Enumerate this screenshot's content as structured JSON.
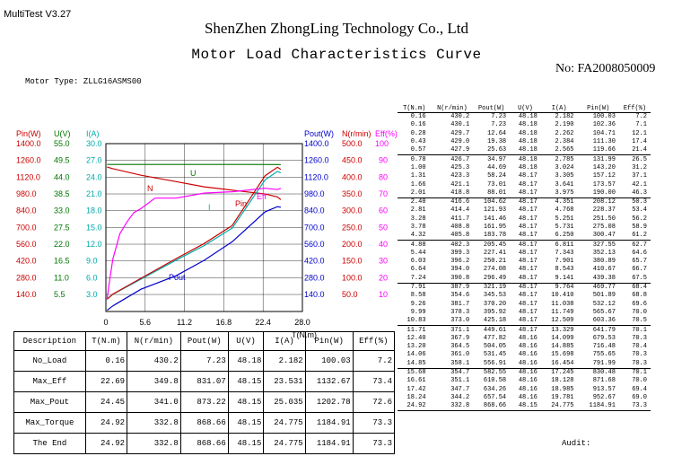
{
  "app_title": "MultiTest V3.27",
  "company": "ShenZhen ZhongLing Technology Co., Ltd",
  "subtitle": "Motor Load Characteristics Curve",
  "serial_no": "No: FA2008050009",
  "motor_type": "Motor Type: ZLLG16ASMS00",
  "audit_label": "Audit:",
  "colors": {
    "pin": "#cc0000",
    "u": "#007700",
    "i": "#00aaaa",
    "pout": "#0000cc",
    "n": "#cc0000",
    "eff": "#ff00ff",
    "grid": "#000000"
  },
  "chart_data": {
    "type": "line",
    "x_axis": {
      "label": "T(N.m)",
      "range": [
        0,
        28.0
      ],
      "ticks": [
        "0",
        "5.6",
        "11.2",
        "16.8",
        "22.4",
        "28.0"
      ]
    },
    "left_axes": [
      {
        "label": "Pin(W)",
        "color": "#cc0000",
        "ticks": [
          "1400.0",
          "1260.0",
          "1120.0",
          "980.0",
          "840.0",
          "700.0",
          "560.0",
          "420.0",
          "280.0",
          "140.0"
        ],
        "range": [
          0,
          1400
        ]
      },
      {
        "label": "U(V)",
        "color": "#007700",
        "ticks": [
          "55.0",
          "49.5",
          "44.0",
          "38.5",
          "33.0",
          "27.5",
          "22.0",
          "16.5",
          "11.0",
          "5.5"
        ],
        "range": [
          0,
          55
        ]
      },
      {
        "label": "I(A)",
        "color": "#00aaaa",
        "ticks": [
          "30.0",
          "27.0",
          "24.0",
          "21.0",
          "18.0",
          "15.0",
          "12.0",
          "9.0",
          "6.0",
          "3.0"
        ],
        "range": [
          0,
          30
        ]
      }
    ],
    "right_axes": [
      {
        "label": "Pout(W)",
        "color": "#0000cc",
        "ticks": [
          "1400.0",
          "1260.0",
          "1120.0",
          "980.0",
          "840.0",
          "700.0",
          "560.0",
          "420.0",
          "280.0",
          "140.0"
        ],
        "range": [
          0,
          1400
        ]
      },
      {
        "label": "N(r/min)",
        "color": "#cc0000",
        "ticks": [
          "500.0",
          "450.0",
          "400.0",
          "350.0",
          "300.0",
          "250.0",
          "200.0",
          "150.0",
          "100.0",
          "50.0"
        ],
        "range": [
          0,
          500
        ]
      },
      {
        "label": "Eff(%)",
        "color": "#ff00ff",
        "ticks": [
          "100",
          "90",
          "80",
          "70",
          "60",
          "50",
          "40",
          "30",
          "20",
          "10"
        ],
        "range": [
          0,
          100
        ]
      }
    ],
    "curve_labels": [
      "U",
      "N",
      "Eff",
      "Pin",
      "I",
      "Pout"
    ],
    "series": [
      {
        "name": "N",
        "axis": "N",
        "points": [
          [
            0.16,
            430.2
          ],
          [
            1.0,
            425.3
          ],
          [
            5.0,
            405.8
          ],
          [
            10.0,
            386.8
          ],
          [
            14.0,
            371.1
          ],
          [
            18.0,
            361.2
          ],
          [
            22.69,
            349.8
          ],
          [
            24.45,
            341.0
          ],
          [
            24.92,
            332.8
          ]
        ]
      },
      {
        "name": "U",
        "axis": "U",
        "points": [
          [
            0.16,
            48.18
          ],
          [
            5.0,
            48.18
          ],
          [
            10.0,
            48.17
          ],
          [
            15.0,
            48.16
          ],
          [
            20.0,
            48.16
          ],
          [
            24.92,
            48.15
          ]
        ]
      },
      {
        "name": "I",
        "axis": "I",
        "points": [
          [
            0.16,
            2.182
          ],
          [
            1.0,
            3.024
          ],
          [
            5.0,
            5.731
          ],
          [
            10.0,
            9.141
          ],
          [
            14.0,
            11.749
          ],
          [
            18.0,
            14.885
          ],
          [
            22.69,
            23.531
          ],
          [
            24.45,
            25.035
          ],
          [
            24.92,
            24.775
          ]
        ]
      },
      {
        "name": "Pin",
        "axis": "Pin",
        "points": [
          [
            0.16,
            100.03
          ],
          [
            1.0,
            143.2
          ],
          [
            5.0,
            275.08
          ],
          [
            10.0,
            439.38
          ],
          [
            14.0,
            565.67
          ],
          [
            18.0,
            716.48
          ],
          [
            22.69,
            1132.67
          ],
          [
            24.45,
            1202.78
          ],
          [
            24.92,
            1184.91
          ]
        ]
      },
      {
        "name": "Pout",
        "axis": "Pout",
        "points": [
          [
            0.16,
            7.23
          ],
          [
            1.0,
            44.69
          ],
          [
            5.0,
            183.78
          ],
          [
            10.0,
            296.49
          ],
          [
            14.0,
            425.18
          ],
          [
            18.0,
            580.53
          ],
          [
            22.69,
            831.07
          ],
          [
            24.45,
            873.22
          ],
          [
            24.92,
            868.66
          ]
        ]
      },
      {
        "name": "Eff",
        "axis": "Eff",
        "points": [
          [
            0.16,
            7.2
          ],
          [
            0.5,
            17.4
          ],
          [
            1.0,
            31.2
          ],
          [
            2.0,
            46.3
          ],
          [
            3.0,
            53.3
          ],
          [
            4.0,
            58.9
          ],
          [
            5.0,
            61.2
          ],
          [
            7.0,
            67.5
          ],
          [
            10.0,
            67.5
          ],
          [
            14.0,
            70.5
          ],
          [
            18.0,
            71.3
          ],
          [
            22.69,
            73.4
          ],
          [
            24.45,
            72.6
          ],
          [
            24.92,
            73.3
          ]
        ]
      }
    ]
  },
  "summary": {
    "headers": [
      "Description",
      "T(N.m)",
      "N(r/min)",
      "Pout(W)",
      "U(V)",
      "I(A)",
      "Pin(W)",
      "Eff(%)"
    ],
    "rows": [
      [
        "No_Load",
        "0.16",
        "430.2",
        "7.23",
        "48.18",
        "2.182",
        "100.03",
        "7.2"
      ],
      [
        "Max_Eff",
        "22.69",
        "349.8",
        "831.07",
        "48.15",
        "23.531",
        "1132.67",
        "73.4"
      ],
      [
        "Max_Pout",
        "24.45",
        "341.0",
        "873.22",
        "48.15",
        "25.035",
        "1202.78",
        "72.6"
      ],
      [
        "Max_Torque",
        "24.92",
        "332.8",
        "868.66",
        "48.15",
        "24.775",
        "1184.91",
        "73.3"
      ],
      [
        "The End",
        "24.92",
        "332.8",
        "868.66",
        "48.15",
        "24.775",
        "1184.91",
        "73.3"
      ]
    ]
  },
  "points": {
    "headers": [
      "T(N.m)",
      "N(r/min)",
      "Pout(W)",
      "U(V)",
      "I(A)",
      "Pin(W)",
      "Eff(%)"
    ],
    "groups": [
      [
        [
          "0.16",
          "430.2",
          "7.23",
          "48.18",
          "2.182",
          "100.03",
          "7.2"
        ],
        [
          "0.16",
          "430.1",
          "7.23",
          "48.18",
          "2.190",
          "102.36",
          "7.1"
        ],
        [
          "0.28",
          "429.7",
          "12.64",
          "48.18",
          "2.262",
          "104.71",
          "12.1"
        ],
        [
          "0.43",
          "429.0",
          "19.38",
          "48.18",
          "2.384",
          "111.30",
          "17.4"
        ],
        [
          "0.57",
          "427.9",
          "25.63",
          "48.18",
          "2.565",
          "119.66",
          "21.4"
        ]
      ],
      [
        [
          "0.78",
          "426.7",
          "34.97",
          "48.18",
          "2.785",
          "131.99",
          "26.5"
        ],
        [
          "1.00",
          "425.3",
          "44.69",
          "48.18",
          "3.024",
          "143.20",
          "31.2"
        ],
        [
          "1.31",
          "423.3",
          "58.24",
          "48.17",
          "3.305",
          "157.12",
          "37.1"
        ],
        [
          "1.66",
          "421.1",
          "73.01",
          "48.17",
          "3.641",
          "173.57",
          "42.1"
        ],
        [
          "2.01",
          "418.8",
          "88.01",
          "48.17",
          "3.975",
          "190.00",
          "46.3"
        ]
      ],
      [
        [
          "2.40",
          "416.6",
          "104.62",
          "48.17",
          "4.351",
          "208.12",
          "50.3"
        ],
        [
          "2.81",
          "414.4",
          "121.93",
          "48.17",
          "4.768",
          "228.37",
          "53.4"
        ],
        [
          "3.28",
          "411.7",
          "141.46",
          "48.17",
          "5.251",
          "251.50",
          "56.2"
        ],
        [
          "3.78",
          "408.8",
          "161.95",
          "48.17",
          "5.731",
          "275.08",
          "58.9"
        ],
        [
          "4.32",
          "405.8",
          "183.78",
          "48.17",
          "6.250",
          "300.47",
          "61.2"
        ]
      ],
      [
        [
          "4.88",
          "402.3",
          "205.45",
          "48.17",
          "6.811",
          "327.55",
          "62.7"
        ],
        [
          "5.44",
          "399.3",
          "227.41",
          "48.17",
          "7.343",
          "352.13",
          "64.6"
        ],
        [
          "6.03",
          "396.2",
          "250.21",
          "48.17",
          "7.901",
          "380.89",
          "65.7"
        ],
        [
          "6.64",
          "394.0",
          "274.08",
          "48.17",
          "8.543",
          "410.67",
          "66.7"
        ],
        [
          "7.24",
          "390.8",
          "296.49",
          "48.17",
          "9.141",
          "439.38",
          "67.5"
        ]
      ],
      [
        [
          "7.91",
          "387.9",
          "321.19",
          "48.17",
          "9.764",
          "469.77",
          "68.4"
        ],
        [
          "8.58",
          "354.6",
          "345.53",
          "48.17",
          "10.410",
          "501.89",
          "68.8"
        ],
        [
          "9.26",
          "381.7",
          "370.20",
          "48.17",
          "11.038",
          "532.12",
          "69.6"
        ],
        [
          "9.99",
          "378.3",
          "395.92",
          "48.17",
          "11.749",
          "565.67",
          "70.0"
        ],
        [
          "10.83",
          "373.0",
          "425.18",
          "48.17",
          "12.509",
          "603.36",
          "70.5"
        ]
      ],
      [
        [
          "11.71",
          "371.1",
          "449.61",
          "48.17",
          "13.329",
          "641.79",
          "70.1"
        ],
        [
          "12.40",
          "367.9",
          "477.82",
          "48.16",
          "14.099",
          "679.53",
          "70.3"
        ],
        [
          "13.20",
          "364.5",
          "504.05",
          "48.16",
          "14.885",
          "716.48",
          "70.4"
        ],
        [
          "14.06",
          "361.0",
          "531.45",
          "48.16",
          "15.698",
          "755.65",
          "70.3"
        ],
        [
          "14.85",
          "358.1",
          "556.91",
          "48.16",
          "16.454",
          "791.99",
          "70.3"
        ]
      ],
      [
        [
          "15.68",
          "354.7",
          "582.55",
          "48.16",
          "17.245",
          "830.48",
          "70.1"
        ],
        [
          "16.61",
          "351.1",
          "610.58",
          "48.16",
          "18.128",
          "871.68",
          "70.0"
        ],
        [
          "17.42",
          "347.7",
          "634.26",
          "48.16",
          "18.985",
          "913.57",
          "69.4"
        ],
        [
          "18.24",
          "344.2",
          "657.54",
          "48.16",
          "19.781",
          "952.67",
          "69.0"
        ],
        [
          "24.92",
          "332.8",
          "868.66",
          "48.15",
          "24.775",
          "1184.91",
          "73.3"
        ]
      ]
    ]
  }
}
